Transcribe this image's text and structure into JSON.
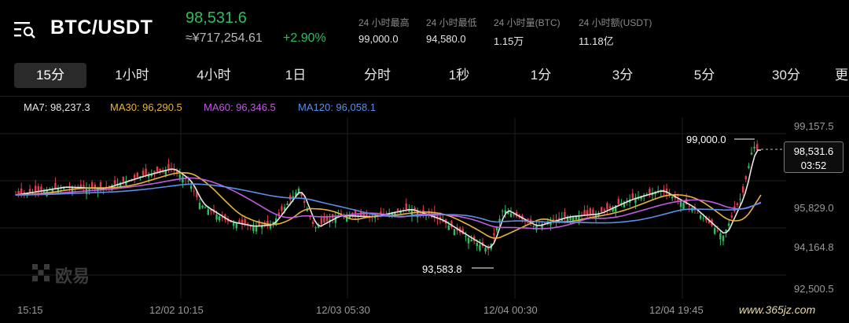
{
  "header": {
    "pair": "BTC/USDT",
    "last_price": "98,531.6",
    "cny_price": "≈¥717,254.61",
    "change_pct": "+2.90%",
    "stats": [
      {
        "label": "24 小时最高",
        "value": "99,000.0"
      },
      {
        "label": "24 小时最低",
        "value": "94,580.0"
      },
      {
        "label": "24 小时量(BTC)",
        "value": "1.15万"
      },
      {
        "label": "24 小时额(USDT)",
        "value": "11.18亿"
      }
    ]
  },
  "tabs": [
    "15分",
    "1小时",
    "4小时",
    "1日",
    "分时",
    "1秒",
    "1分",
    "3分",
    "5分",
    "30分",
    "更"
  ],
  "active_tab": "15分",
  "indicators": [
    {
      "label": "MA7: 98,237.3",
      "color": "#e6e6e6"
    },
    {
      "label": "MA30: 96,290.5",
      "color": "#e8b33c"
    },
    {
      "label": "MA60: 96,346.5",
      "color": "#c05ce0"
    },
    {
      "label": "MA120: 96,058.1",
      "color": "#5b8fe8"
    }
  ],
  "chart_data": {
    "type": "candlestick",
    "y_ticks": [
      "99,157.5",
      "95,829.0",
      "94,164.8",
      "92,500.5"
    ],
    "x_ticks": [
      "15:15",
      "12/02 10:15",
      "12/03 05:30",
      "12/04 00:30",
      "12/04 19:45"
    ],
    "high_marker": "99,000.0",
    "low_marker": "93,583.8",
    "current_price": "98,531.6",
    "countdown": "03:52",
    "up_color": "#2ebd5f",
    "down_color": "#e03c4a"
  },
  "brand": {
    "logo_text": "欧易"
  },
  "watermark": "www.365jz.com"
}
